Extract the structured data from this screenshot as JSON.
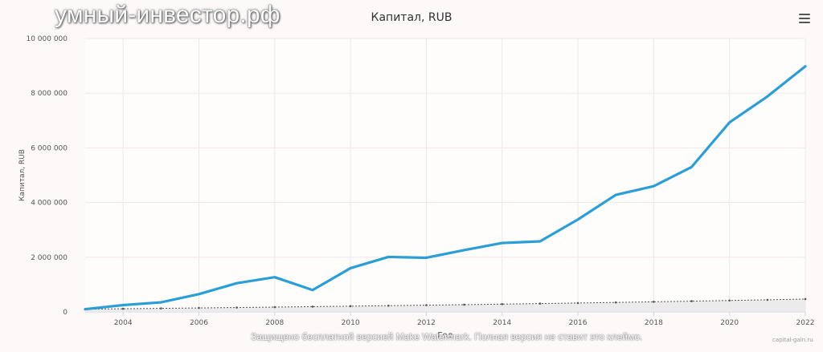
{
  "watermark_text": "умный-инвестор.рф",
  "footer_watermark": "Защищено бесплатной версией Make Watermark. Полная версия не ставит это клеймо.",
  "credits": "capital-gain.ru",
  "chart_data": {
    "type": "line",
    "title": "Капитал, RUB",
    "xlabel": "Год",
    "ylabel": "Капитал, RUB",
    "xlim": [
      2003,
      2022
    ],
    "ylim": [
      0,
      10000000
    ],
    "y_ticks": [
      0,
      2000000,
      4000000,
      6000000,
      8000000,
      10000000
    ],
    "y_tick_labels": [
      "0",
      "2 000 000",
      "4 000 000",
      "6 000 000",
      "8 000 000",
      "10 000 000"
    ],
    "x_ticks": [
      2004,
      2006,
      2008,
      2010,
      2012,
      2014,
      2016,
      2018,
      2020,
      2022
    ],
    "x_tick_labels": [
      "2004",
      "2006",
      "2008",
      "2010",
      "2012",
      "2014",
      "2016",
      "2018",
      "2020",
      "2022"
    ],
    "grid": true,
    "x": [
      2003,
      2004,
      2005,
      2006,
      2007,
      2008,
      2009,
      2010,
      2011,
      2012,
      2013,
      2014,
      2015,
      2016,
      2017,
      2018,
      2019,
      2020,
      2021,
      2022
    ],
    "series": [
      {
        "values": [
          100000,
          250000,
          350000,
          650000,
          1050000,
          1270000,
          800000,
          1600000,
          2010000,
          1980000,
          2260000,
          2520000,
          2580000,
          3380000,
          4280000,
          4600000,
          5300000,
          6930000,
          7880000,
          8980000
        ],
        "color": "#2a9fd6"
      },
      {
        "values": [
          100000,
          115000,
          130000,
          145000,
          160000,
          176000,
          193000,
          210000,
          228000,
          246000,
          265000,
          285000,
          305000,
          326000,
          347000,
          370000,
          393000,
          418000,
          443000,
          470000
        ],
        "color": "#555555"
      }
    ]
  }
}
